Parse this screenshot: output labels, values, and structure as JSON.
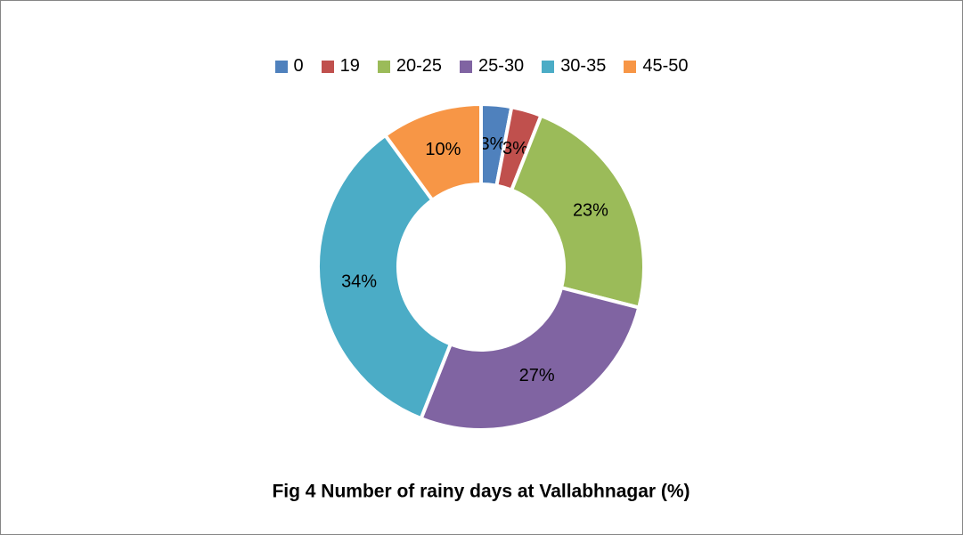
{
  "chart_data": {
    "type": "donut",
    "title": "Fig 4 Number of rainy days at Vallabhnagar (%)",
    "categories": [
      "0",
      "19",
      "20-25",
      "25-30",
      "30-35",
      "45-50"
    ],
    "values": [
      3,
      3,
      23,
      27,
      34,
      10
    ],
    "value_labels": [
      "3%",
      "3%",
      "23%",
      "27%",
      "34%",
      "10%"
    ],
    "colors": [
      "#4f81bd",
      "#c0504d",
      "#9bbb59",
      "#8064a2",
      "#4bacc6",
      "#f79646"
    ],
    "legend": "top"
  }
}
